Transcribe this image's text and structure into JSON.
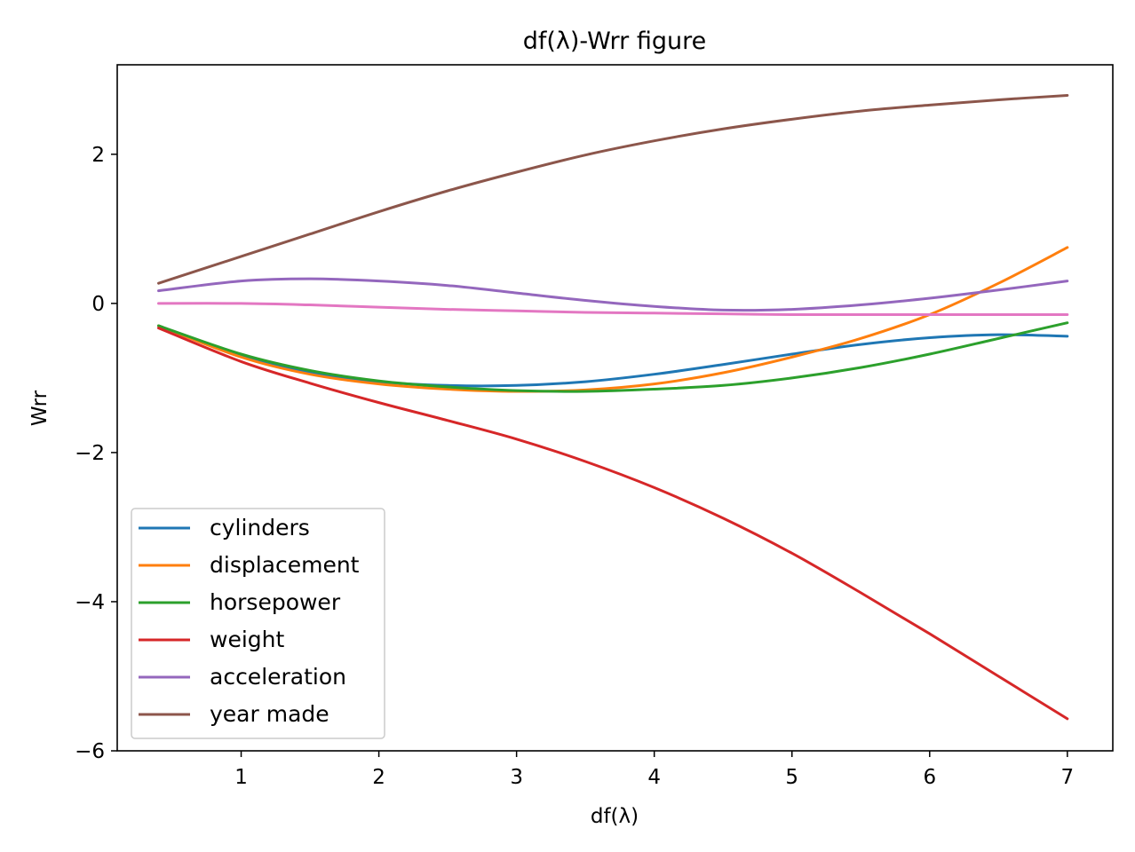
{
  "chart_data": {
    "type": "line",
    "title": "df(λ)-Wrr figure",
    "xlabel": "df(λ)",
    "ylabel": "Wrr",
    "xlim": [
      0.1,
      7.33
    ],
    "ylim": [
      -6,
      3.2
    ],
    "xticks": [
      1,
      2,
      3,
      4,
      5,
      6,
      7
    ],
    "yticks": [
      2,
      0,
      -2,
      -4,
      -6
    ],
    "xtick_labels": [
      "1",
      "2",
      "3",
      "4",
      "5",
      "6",
      "7"
    ],
    "ytick_labels": [
      "2",
      "0",
      "−2",
      "−4",
      "−6"
    ],
    "legend_position": "lower-left",
    "x": [
      0.4,
      1.0,
      1.5,
      2.0,
      2.5,
      3.0,
      3.5,
      4.0,
      4.5,
      5.0,
      5.5,
      6.0,
      6.5,
      7.0
    ],
    "series": [
      {
        "name": "cylinders",
        "color": "#1f77b4",
        "in_legend": true,
        "values": [
          -0.3,
          -0.7,
          -0.92,
          -1.05,
          -1.1,
          -1.1,
          -1.05,
          -0.95,
          -0.82,
          -0.68,
          -0.55,
          -0.46,
          -0.42,
          -0.44
        ]
      },
      {
        "name": "displacement",
        "color": "#ff7f0e",
        "in_legend": true,
        "values": [
          -0.3,
          -0.72,
          -0.95,
          -1.08,
          -1.15,
          -1.18,
          -1.16,
          -1.08,
          -0.93,
          -0.72,
          -0.47,
          -0.15,
          0.27,
          0.75
        ]
      },
      {
        "name": "horsepower",
        "color": "#2ca02c",
        "in_legend": true,
        "values": [
          -0.3,
          -0.68,
          -0.9,
          -1.04,
          -1.12,
          -1.17,
          -1.18,
          -1.15,
          -1.1,
          -1.0,
          -0.86,
          -0.68,
          -0.47,
          -0.26
        ]
      },
      {
        "name": "weight",
        "color": "#d62728",
        "in_legend": true,
        "values": [
          -0.33,
          -0.78,
          -1.07,
          -1.33,
          -1.57,
          -1.82,
          -2.12,
          -2.47,
          -2.88,
          -3.35,
          -3.88,
          -4.43,
          -5.0,
          -5.57
        ]
      },
      {
        "name": "acceleration",
        "color": "#9467bd",
        "in_legend": true,
        "values": [
          0.17,
          0.3,
          0.33,
          0.3,
          0.24,
          0.14,
          0.04,
          -0.04,
          -0.09,
          -0.08,
          -0.02,
          0.07,
          0.18,
          0.3
        ]
      },
      {
        "name": "year made",
        "color": "#8c564b",
        "in_legend": true,
        "values": [
          0.27,
          0.63,
          0.93,
          1.23,
          1.51,
          1.76,
          1.99,
          2.18,
          2.34,
          2.47,
          2.58,
          2.66,
          2.73,
          2.79
        ]
      },
      {
        "name": "",
        "color": "#e377c2",
        "in_legend": false,
        "values": [
          0.0,
          0.0,
          -0.02,
          -0.05,
          -0.08,
          -0.1,
          -0.12,
          -0.13,
          -0.14,
          -0.15,
          -0.15,
          -0.15,
          -0.15,
          -0.15
        ]
      }
    ]
  }
}
